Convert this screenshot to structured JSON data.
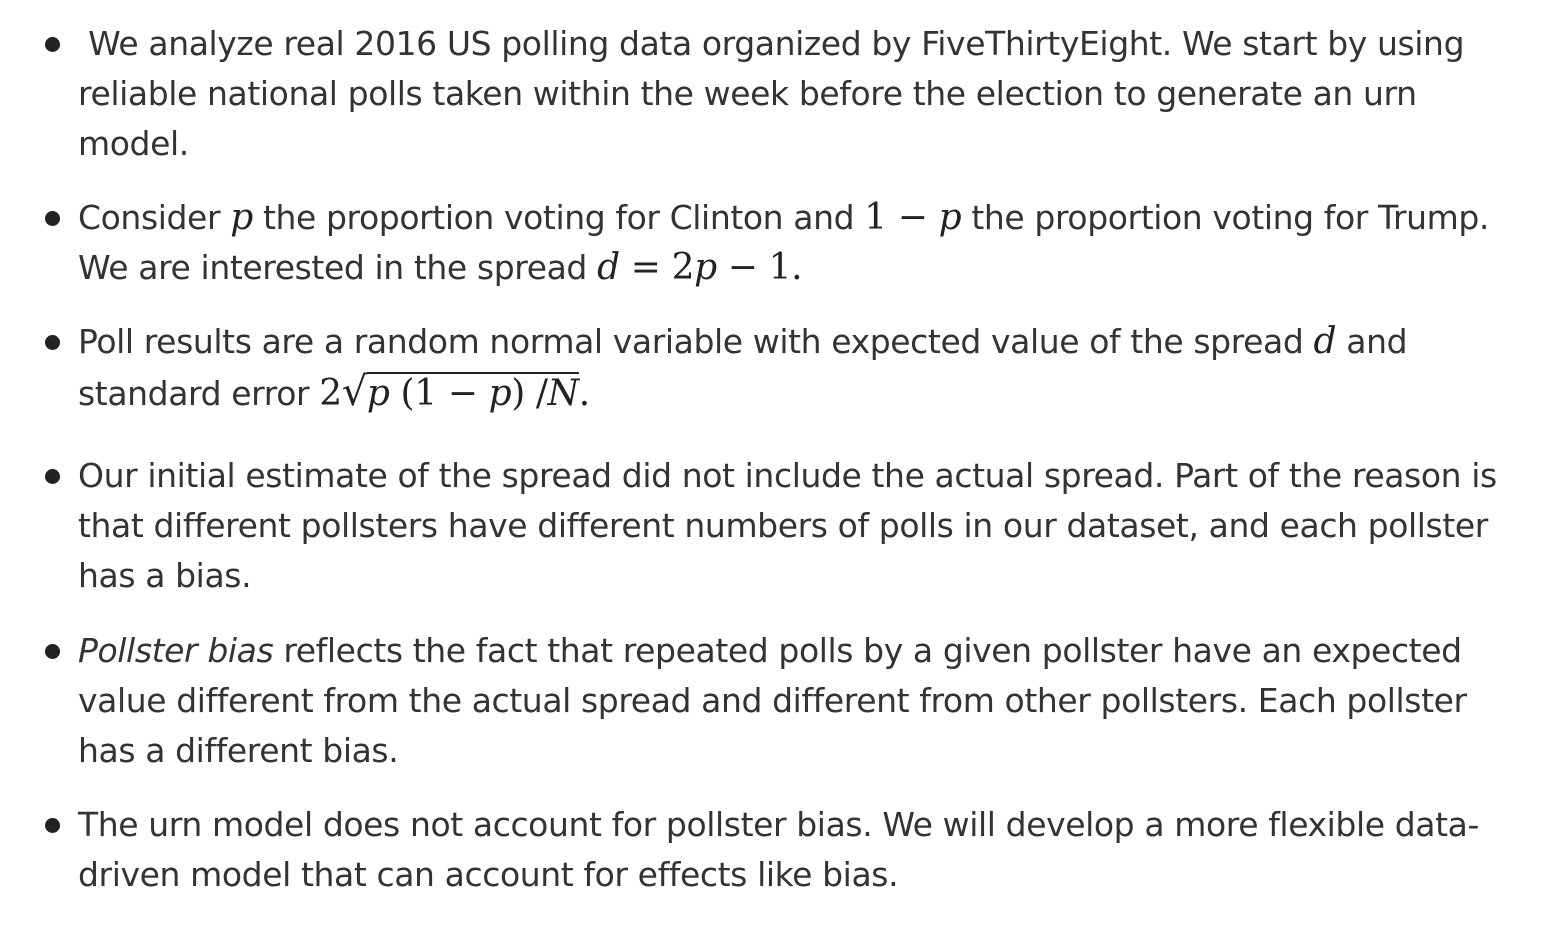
{
  "bullets": [
    {
      "lines": [
        " We analyze real 2016 US polling data organized by FiveThirtyEight. We start by using",
        "reliable national polls taken within the week before the election to generate an urn",
        "model."
      ]
    },
    {
      "parts": {
        "a": "Consider ",
        "p": "p",
        "b": " the proportion voting for Clinton and ",
        "one": "1",
        "minus": " − ",
        "p2": "p",
        "c": " the proportion voting for Trump.",
        "d": "We are interested in the spread ",
        "dvar": "d",
        "eq": " = 2",
        "p3": "p",
        "minus2": " − 1",
        "end": "."
      }
    },
    {
      "parts": {
        "a": "Poll results are a random normal variable with expected value of the spread ",
        "dvar": "d",
        "b": " and",
        "c": "standard error ",
        "two": "2",
        "radical": "√",
        "p": "p",
        "open": " (1 − ",
        "p2": "p",
        "close": ") /",
        "N": "N",
        "end": "."
      }
    },
    {
      "lines": [
        "Our initial estimate of the spread did not include the actual spread. Part of the reason is",
        "that different pollsters have different numbers of polls in our dataset, and each pollster",
        "has a bias."
      ]
    },
    {
      "parts": {
        "em": "Pollster bias",
        "a": " reflects the fact that repeated polls by a given pollster have an expected",
        "b": "value different from the actual spread and different from other pollsters. Each pollster",
        "c": "has a different bias."
      }
    },
    {
      "lines": [
        "The urn model does not account for pollster bias. We will develop a more flexible data-",
        "driven model that can account for effects like bias."
      ]
    }
  ]
}
